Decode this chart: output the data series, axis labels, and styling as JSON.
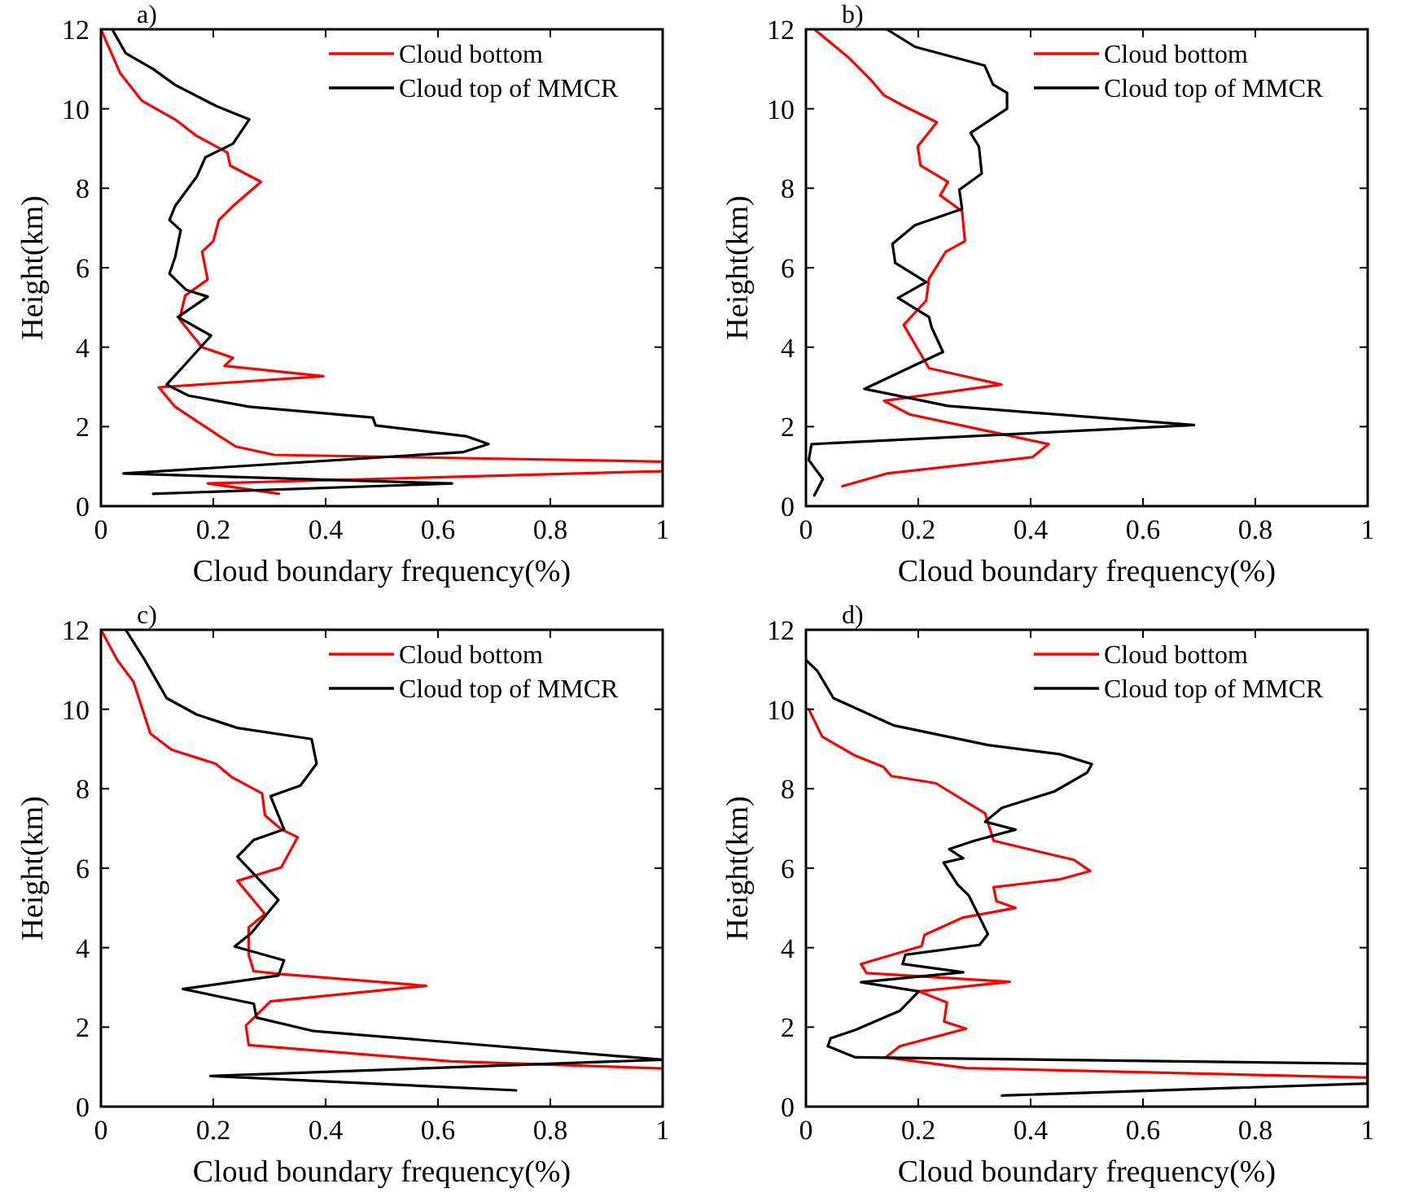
{
  "chart_data": [
    {
      "type": "line",
      "xlabel": "Cloud boundary frequency(%)",
      "ylabel": "Height(km)",
      "annotations": [
        "a)"
      ],
      "xlim": [
        0,
        1
      ],
      "xticks": [
        0,
        0.2,
        0.4,
        0.6,
        0.8,
        1
      ],
      "ylim": [
        0,
        12
      ],
      "yticks": [
        0,
        2,
        4,
        6,
        8,
        10,
        12
      ],
      "legend": "top right",
      "series": [
        {
          "name": "Cloud bottom",
          "color": "#ff0000",
          "x": [
            0,
            0.034,
            0.073,
            0.132,
            0.17,
            0.225,
            0.23,
            0.285,
            0.235,
            0.21,
            0.2,
            0.18,
            0.19,
            0.15,
            0.14,
            0.18,
            0.235,
            0.22,
            0.396,
            0.103,
            0.132,
            0.21,
            0.24,
            0.308,
            1,
            1,
            0.19,
            0.317
          ],
          "values": [
            12,
            10.9,
            10.2,
            9.73,
            9.32,
            8.9,
            8.57,
            8.16,
            7.55,
            7.2,
            6.67,
            6.4,
            5.7,
            5.3,
            4.7,
            4.0,
            3.73,
            3.53,
            3.27,
            2.99,
            2.5,
            1.77,
            1.5,
            1.29,
            1.12,
            0.88,
            0.57,
            0.31
          ]
        },
        {
          "name": "Cloud top of MMCR",
          "color": "#000000",
          "x": [
            0.02,
            0.044,
            0.093,
            0.132,
            0.205,
            0.264,
            0.235,
            0.186,
            0.171,
            0.132,
            0.122,
            0.142,
            0.132,
            0.122,
            0.152,
            0.19,
            0.137,
            0.196,
            0.152,
            0.117,
            0.156,
            0.264,
            0.484,
            0.489,
            0.65,
            0.69,
            0.645,
            0.04,
            0.625,
            0.093
          ],
          "values": [
            12,
            11.4,
            11.0,
            10.6,
            10.07,
            9.73,
            9.12,
            8.78,
            8.3,
            7.55,
            7.2,
            6.94,
            6.26,
            5.85,
            5.44,
            5.27,
            4.76,
            4.29,
            3.6,
            3.06,
            2.78,
            2.5,
            2.23,
            2.03,
            1.76,
            1.56,
            1.36,
            0.82,
            0.57,
            0.31
          ]
        }
      ]
    },
    {
      "type": "line",
      "xlabel": "Cloud boundary frequency(%)",
      "ylabel": "Height(km)",
      "annotations": [
        "b)"
      ],
      "xlim": [
        0,
        1
      ],
      "xticks": [
        0,
        0.2,
        0.4,
        0.6,
        0.8,
        1
      ],
      "ylim": [
        0,
        12
      ],
      "yticks": [
        0,
        2,
        4,
        6,
        8,
        10,
        12
      ],
      "legend": "top right",
      "series": [
        {
          "name": "Cloud bottom",
          "color": "#ff0000",
          "x": [
            0.015,
            0.075,
            0.114,
            0.139,
            0.174,
            0.233,
            0.199,
            0.204,
            0.253,
            0.239,
            0.278,
            0.283,
            0.249,
            0.219,
            0.214,
            0.174,
            0.219,
            0.348,
            0.139,
            0.184,
            0.343,
            0.432,
            0.403,
            0.144,
            0.065
          ],
          "values": [
            12,
            11.3,
            10.75,
            10.34,
            10.07,
            9.66,
            9.05,
            8.57,
            8.16,
            7.82,
            7.42,
            6.67,
            6.4,
            5.72,
            5.17,
            4.56,
            3.47,
            3.06,
            2.65,
            2.31,
            1.83,
            1.56,
            1.23,
            0.82,
            0.5
          ]
        },
        {
          "name": "Cloud top of MMCR",
          "color": "#000000",
          "x": [
            0.144,
            0.194,
            0.318,
            0.333,
            0.358,
            0.358,
            0.293,
            0.308,
            0.313,
            0.273,
            0.278,
            0.194,
            0.154,
            0.159,
            0.214,
            0.164,
            0.219,
            0.224,
            0.244,
            0.104,
            0.253,
            0.691,
            0.01,
            0.005,
            0.03,
            0.015
          ],
          "values": [
            12,
            11.56,
            11.09,
            10.61,
            10.4,
            10.0,
            9.39,
            9.05,
            8.37,
            7.96,
            7.48,
            7.07,
            6.6,
            6.12,
            5.64,
            5.24,
            4.76,
            4.49,
            3.88,
            2.95,
            2.52,
            2.04,
            1.56,
            1.16,
            0.68,
            0.27
          ]
        }
      ]
    },
    {
      "type": "line",
      "xlabel": "Cloud boundary frequency(%)",
      "ylabel": "Height(km)",
      "annotations": [
        "c)"
      ],
      "xlim": [
        0,
        1
      ],
      "xticks": [
        0,
        0.2,
        0.4,
        0.6,
        0.8,
        1
      ],
      "ylim": [
        0,
        12
      ],
      "yticks": [
        0,
        2,
        4,
        6,
        8,
        10,
        12
      ],
      "legend": "top right",
      "series": [
        {
          "name": "Cloud bottom",
          "color": "#ff0000",
          "x": [
            0,
            0.029,
            0.058,
            0.088,
            0.126,
            0.204,
            0.233,
            0.287,
            0.292,
            0.321,
            0.35,
            0.321,
            0.243,
            0.292,
            0.263,
            0.263,
            0.272,
            0.316,
            0.579,
            0.302,
            0.258,
            0.263,
            0.623,
            1
          ],
          "values": [
            12,
            11.24,
            10.69,
            9.39,
            8.98,
            8.63,
            8.29,
            7.88,
            7.33,
            6.98,
            6.78,
            6.02,
            5.68,
            4.85,
            4.51,
            3.82,
            3.41,
            3.34,
            3.04,
            2.65,
            2.04,
            1.55,
            1.14,
            0.96
          ]
        },
        {
          "name": "Cloud top of MMCR",
          "color": "#000000",
          "x": [
            0.044,
            0.078,
            0.117,
            0.17,
            0.243,
            0.375,
            0.384,
            0.355,
            0.302,
            0.326,
            0.272,
            0.243,
            0.316,
            0.268,
            0.238,
            0.326,
            0.316,
            0.146,
            0.272,
            0.277,
            0.379,
            1,
            0.195,
            0.739
          ],
          "values": [
            12,
            11.24,
            10.28,
            9.87,
            9.53,
            9.25,
            8.63,
            8.08,
            7.81,
            6.98,
            6.71,
            6.29,
            5.2,
            4.37,
            4.03,
            3.68,
            3.3,
            2.96,
            2.59,
            2.24,
            1.9,
            1.18,
            0.77,
            0.41
          ]
        }
      ]
    },
    {
      "type": "line",
      "xlabel": "Cloud boundary frequency(%)",
      "ylabel": "Height(km)",
      "annotations": [
        "d)"
      ],
      "xlim": [
        0,
        1
      ],
      "xticks": [
        0,
        0.2,
        0.4,
        0.6,
        0.8,
        1
      ],
      "ylim": [
        0,
        12
      ],
      "yticks": [
        0,
        2,
        4,
        6,
        8,
        10,
        12
      ],
      "legend": "top right",
      "series": [
        {
          "name": "Cloud bottom",
          "color": "#ff0000",
          "x": [
            0.005,
            0.029,
            0.088,
            0.138,
            0.152,
            0.231,
            0.319,
            0.334,
            0.477,
            0.506,
            0.452,
            0.334,
            0.339,
            0.373,
            0.28,
            0.211,
            0.206,
            0.098,
            0.108,
            0.363,
            0.201,
            0.251,
            0.246,
            0.285,
            0.167,
            0.142,
            0.285,
            1
          ],
          "values": [
            10.0,
            9.31,
            8.83,
            8.55,
            8.32,
            8.14,
            7.38,
            6.69,
            6.21,
            5.93,
            5.72,
            5.52,
            5.17,
            5.0,
            4.76,
            4.32,
            4.04,
            3.59,
            3.36,
            3.14,
            2.9,
            2.62,
            2.14,
            1.96,
            1.52,
            1.24,
            0.97,
            0.73
          ]
        },
        {
          "name": "Cloud top of MMCR",
          "color": "#000000",
          "x": [
            0,
            0.02,
            0.049,
            0.157,
            0.324,
            0.452,
            0.509,
            0.501,
            0.442,
            0.349,
            0.319,
            0.373,
            0.3,
            0.255,
            0.28,
            0.245,
            0.27,
            0.29,
            0.324,
            0.309,
            0.177,
            0.172,
            0.28,
            0.098,
            0.201,
            0.167,
            0.088,
            0.044,
            0.039,
            0.088,
            1,
            1,
            0.349
          ],
          "values": [
            11.24,
            10.97,
            10.28,
            9.59,
            9.1,
            8.87,
            8.62,
            8.41,
            7.93,
            7.52,
            7.17,
            6.97,
            6.69,
            6.48,
            6.25,
            6.14,
            5.59,
            5.31,
            4.34,
            4.07,
            3.82,
            3.59,
            3.38,
            3.13,
            2.9,
            2.41,
            1.93,
            1.72,
            1.52,
            1.24,
            1.08,
            0.58,
            0.28
          ]
        }
      ]
    }
  ]
}
